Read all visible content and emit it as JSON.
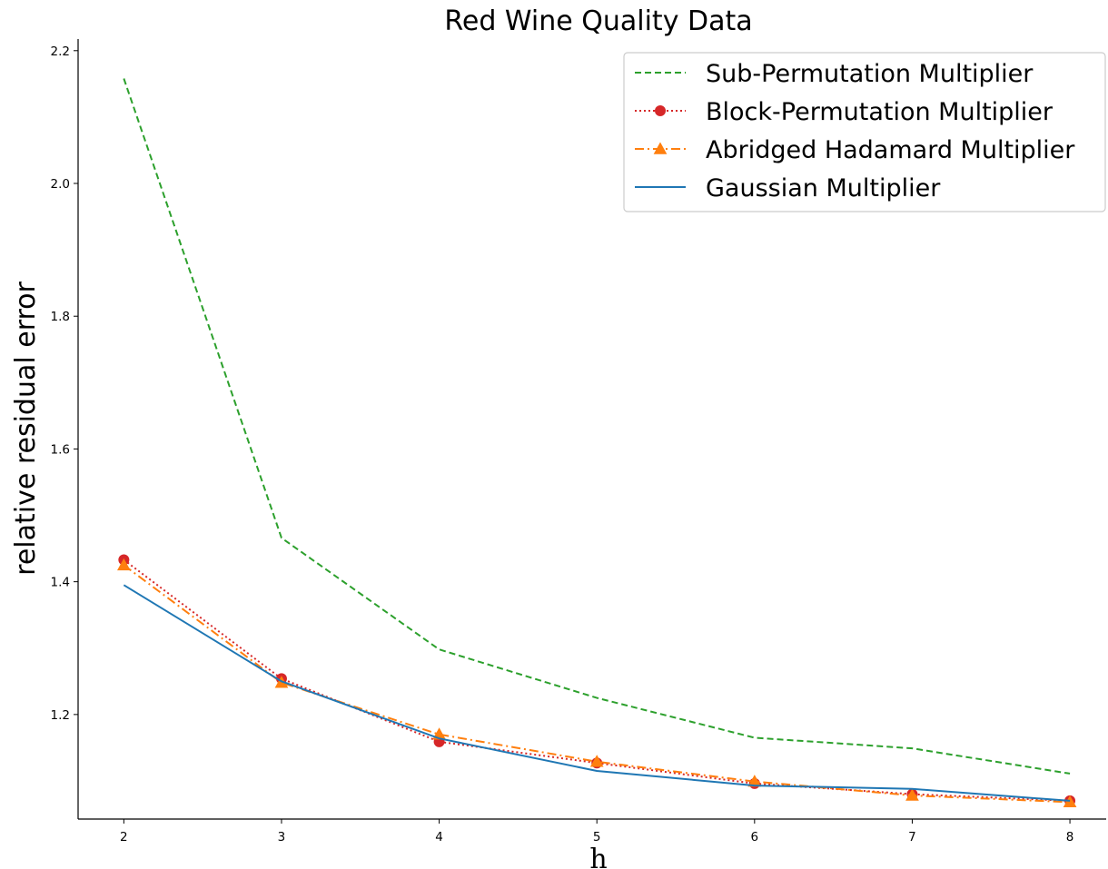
{
  "chart_data": {
    "type": "line",
    "title": "Red Wine Quality Data",
    "xlabel": "h",
    "ylabel": "relative residual error",
    "x": [
      2,
      3,
      4,
      5,
      6,
      7,
      8
    ],
    "xlim": [
      1.71,
      8.23
    ],
    "ylim": [
      1.0425,
      2.2175
    ],
    "xticks": [
      2,
      3,
      4,
      5,
      6,
      7,
      8
    ],
    "yticks": [
      1.2,
      1.4,
      1.6,
      1.8,
      2.0,
      2.2
    ],
    "grid": false,
    "legend_position": "top-right",
    "series": [
      {
        "name": "Sub-Permutation Multiplier",
        "color": "#2ca02c",
        "dash": "7,4",
        "marker": "none",
        "values": [
          2.158,
          1.466,
          1.298,
          1.225,
          1.165,
          1.149,
          1.111
        ]
      },
      {
        "name": "Block-Permutation Multiplier",
        "color": "#d62728",
        "dash": "2,3",
        "marker": "circle",
        "values": [
          1.433,
          1.254,
          1.159,
          1.127,
          1.096,
          1.08,
          1.07
        ]
      },
      {
        "name": "Abridged Hadamard Multiplier",
        "color": "#ff7f0e",
        "dash": "10,4,2,4",
        "marker": "triangle",
        "values": [
          1.425,
          1.248,
          1.17,
          1.129,
          1.099,
          1.078,
          1.068
        ]
      },
      {
        "name": "Gaussian Multiplier",
        "color": "#1f77b4",
        "dash": "",
        "marker": "none",
        "values": [
          1.395,
          1.25,
          1.164,
          1.115,
          1.093,
          1.088,
          1.07
        ]
      }
    ]
  }
}
